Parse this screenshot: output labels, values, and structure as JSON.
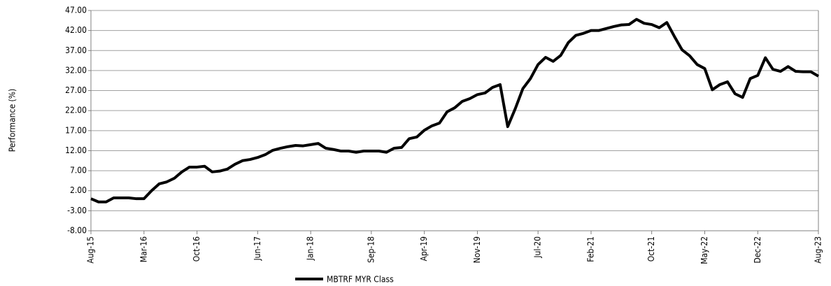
{
  "chart_data": {
    "type": "line",
    "y_label": "Performance (%)",
    "categories": [
      "Aug-15",
      null,
      null,
      null,
      null,
      null,
      null,
      "Mar-16",
      null,
      null,
      null,
      null,
      null,
      null,
      "Oct-16",
      null,
      null,
      null,
      null,
      null,
      null,
      null,
      "Jun-17",
      null,
      null,
      null,
      null,
      null,
      null,
      "Jan-18",
      null,
      null,
      null,
      null,
      null,
      null,
      null,
      "Sep-18",
      null,
      null,
      null,
      null,
      null,
      null,
      "Apr-19",
      null,
      null,
      null,
      null,
      null,
      null,
      "Nov-19",
      null,
      null,
      null,
      null,
      null,
      null,
      null,
      "Jul-20",
      null,
      null,
      null,
      null,
      null,
      null,
      "Feb-21",
      null,
      null,
      null,
      null,
      null,
      null,
      null,
      "Oct-21",
      null,
      null,
      null,
      null,
      null,
      null,
      "May-22",
      null,
      null,
      null,
      null,
      null,
      null,
      "Dec-22",
      null,
      null,
      null,
      null,
      null,
      null,
      null,
      "Aug-23"
    ],
    "series": [
      {
        "name": "MBTRF MYR Class",
        "color": "#000000",
        "values": [
          0.0,
          -0.8,
          -0.8,
          0.2,
          0.2,
          0.2,
          0.0,
          0.0,
          2.0,
          3.7,
          4.2,
          5.1,
          6.7,
          7.9,
          7.9,
          8.1,
          6.7,
          6.9,
          7.4,
          8.6,
          9.5,
          9.8,
          10.3,
          11.0,
          12.1,
          12.6,
          13.0,
          13.3,
          13.2,
          13.5,
          13.8,
          12.6,
          12.3,
          11.9,
          11.9,
          11.6,
          11.9,
          11.9,
          11.9,
          11.6,
          12.6,
          12.8,
          15.0,
          15.4,
          17.1,
          18.2,
          18.9,
          21.7,
          22.7,
          24.3,
          25.0,
          26.0,
          26.4,
          27.8,
          28.5,
          18.0,
          22.5,
          27.5,
          30,
          33.5,
          35.3,
          34.3,
          35.8,
          39,
          40.8,
          41.3,
          42,
          42,
          42.5,
          43,
          43.4,
          43.5,
          44.8,
          43.8,
          43.5,
          42.7,
          44,
          40.5,
          37.2,
          35.7,
          33.5,
          32.5,
          27.2,
          28.5,
          29.2,
          26.2,
          25.3,
          30,
          30.8,
          35.2,
          32.3,
          31.8,
          33.0,
          31.8,
          31.7,
          31.7,
          30.6
        ]
      }
    ],
    "ylim": [
      -8,
      47
    ],
    "yticks": [
      {
        "value": -8,
        "label": "-8.00"
      },
      {
        "value": -3,
        "label": "-3.00"
      },
      {
        "value": 2,
        "label": "2.00"
      },
      {
        "value": 7,
        "label": "7.00"
      },
      {
        "value": 12,
        "label": "12.00"
      },
      {
        "value": 17,
        "label": "17.00"
      },
      {
        "value": 22,
        "label": "22.00"
      },
      {
        "value": 27,
        "label": "27.00"
      },
      {
        "value": 32,
        "label": "32.00"
      },
      {
        "value": 37,
        "label": "37.00"
      },
      {
        "value": 42,
        "label": "42.00"
      },
      {
        "value": 47,
        "label": "47.00"
      }
    ],
    "grid": true,
    "legend": "bottom"
  }
}
